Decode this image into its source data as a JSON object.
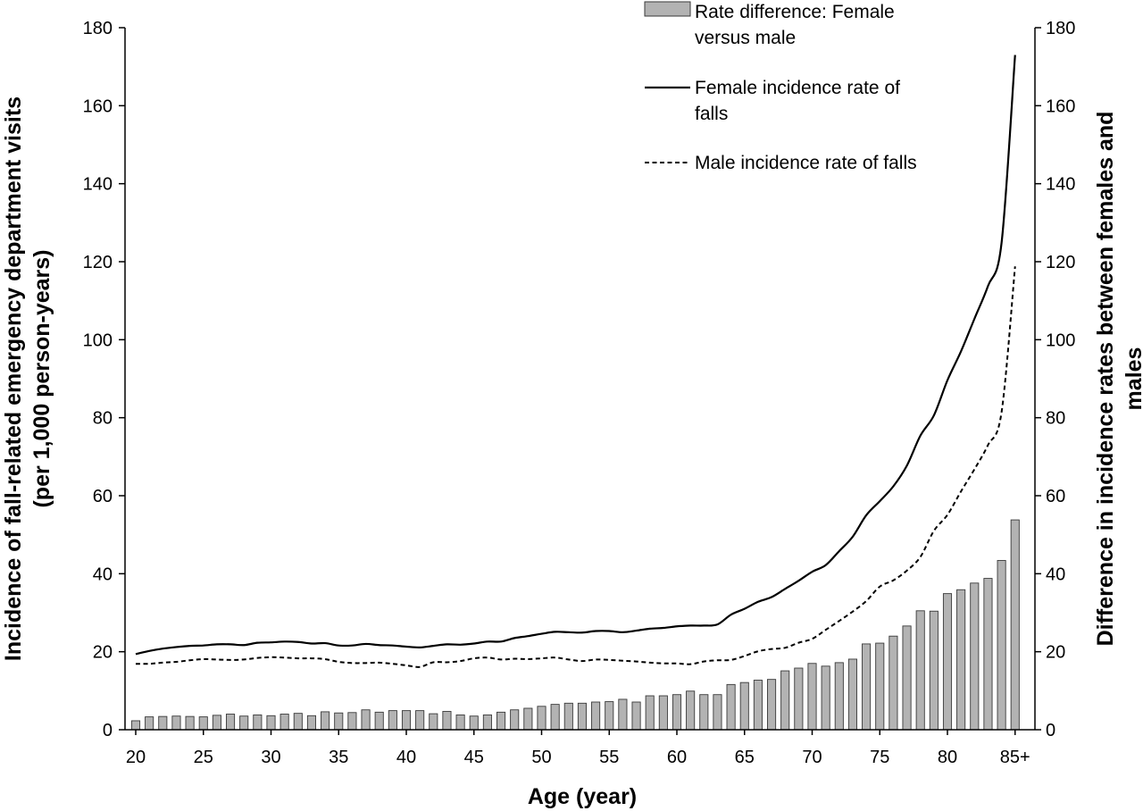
{
  "chart_data": {
    "type": "bar",
    "x": [
      20,
      21,
      22,
      23,
      24,
      25,
      26,
      27,
      28,
      29,
      30,
      31,
      32,
      33,
      34,
      35,
      36,
      37,
      38,
      39,
      40,
      41,
      42,
      43,
      44,
      45,
      46,
      47,
      48,
      49,
      50,
      51,
      52,
      53,
      54,
      55,
      56,
      57,
      58,
      59,
      60,
      61,
      62,
      63,
      64,
      65,
      66,
      67,
      68,
      69,
      70,
      71,
      72,
      73,
      74,
      75,
      76,
      77,
      78,
      79,
      80,
      81,
      82,
      83,
      84,
      85
    ],
    "x_tick_labels": [
      "20",
      "25",
      "30",
      "35",
      "40",
      "45",
      "50",
      "55",
      "60",
      "65",
      "70",
      "75",
      "80",
      "85+"
    ],
    "xlabel": "Age (year)",
    "ylabel_left": [
      "Incidence of fall-related emergency department visits",
      "(per 1,000 person-years)"
    ],
    "ylabel_right": [
      "Difference in incidence rates between females and",
      "males"
    ],
    "ylim": [
      0,
      180
    ],
    "y_ticks": [
      0,
      20,
      40,
      60,
      80,
      100,
      120,
      140,
      160,
      180
    ],
    "grid": false,
    "legend_position": "top-right",
    "series": [
      {
        "name": "Rate difference: Female versus male",
        "kind": "bar",
        "axis": "right",
        "values": [
          2.3,
          3.3,
          3.4,
          3.5,
          3.4,
          3.3,
          3.7,
          4.0,
          3.5,
          3.8,
          3.6,
          4.0,
          4.2,
          3.6,
          4.6,
          4.3,
          4.4,
          5.1,
          4.5,
          4.9,
          4.9,
          4.9,
          4.1,
          4.7,
          3.8,
          3.5,
          3.8,
          4.5,
          5.1,
          5.5,
          6.0,
          6.5,
          6.8,
          6.8,
          7.1,
          7.2,
          7.8,
          7.1,
          8.7,
          8.7,
          9.0,
          9.9,
          9.0,
          9.0,
          11.6,
          12.1,
          12.7,
          12.9,
          15.1,
          15.8,
          17.0,
          16.3,
          17.2,
          18.1,
          22.0,
          22.2,
          24.0,
          26.6,
          30.5,
          30.4,
          34.9,
          35.9,
          37.6,
          38.8,
          43.4,
          53.8
        ]
      },
      {
        "name": "Female incidence rate of falls",
        "kind": "line",
        "style": "solid",
        "axis": "left",
        "values": [
          19.4,
          20.2,
          20.8,
          21.2,
          21.5,
          21.6,
          21.9,
          21.9,
          21.7,
          22.3,
          22.4,
          22.6,
          22.5,
          22.1,
          22.2,
          21.6,
          21.6,
          22.0,
          21.7,
          21.6,
          21.3,
          21.1,
          21.5,
          21.9,
          21.8,
          22.1,
          22.6,
          22.6,
          23.5,
          24.0,
          24.6,
          25.1,
          25.0,
          24.9,
          25.3,
          25.3,
          25.0,
          25.4,
          25.9,
          26.1,
          26.5,
          26.7,
          26.7,
          27.0,
          29.5,
          31.0,
          32.8,
          34.0,
          36.1,
          38.2,
          40.5,
          42.2,
          45.8,
          49.5,
          55.0,
          58.6,
          62.4,
          67.7,
          75.4,
          80.6,
          89.6,
          97.0,
          105.4,
          113.8,
          124.8,
          173.0
        ]
      },
      {
        "name": "Male incidence rate of falls",
        "kind": "line",
        "style": "dashed",
        "axis": "left",
        "values": [
          16.9,
          16.9,
          17.2,
          17.4,
          17.8,
          18.1,
          18.0,
          17.9,
          18.0,
          18.4,
          18.6,
          18.5,
          18.3,
          18.3,
          18.1,
          17.4,
          17.1,
          17.1,
          17.2,
          16.9,
          16.5,
          16.1,
          17.3,
          17.3,
          17.6,
          18.3,
          18.5,
          18.0,
          18.2,
          18.1,
          18.3,
          18.5,
          18.0,
          17.6,
          18.0,
          17.9,
          17.7,
          17.5,
          17.2,
          17.0,
          17.0,
          16.8,
          17.5,
          17.8,
          17.9,
          18.9,
          20.1,
          20.7,
          21.0,
          22.3,
          23.3,
          25.6,
          27.9,
          30.3,
          33.0,
          36.7,
          38.3,
          40.8,
          44.3,
          51.0,
          55.1,
          61.1,
          66.8,
          73.0,
          81.4,
          118.8
        ]
      }
    ],
    "legend": [
      {
        "label": [
          "Rate difference: Female",
          "versus male"
        ]
      },
      {
        "label": [
          "Female incidence rate of",
          "falls"
        ]
      },
      {
        "label": [
          "Male incidence rate of falls"
        ]
      }
    ]
  }
}
